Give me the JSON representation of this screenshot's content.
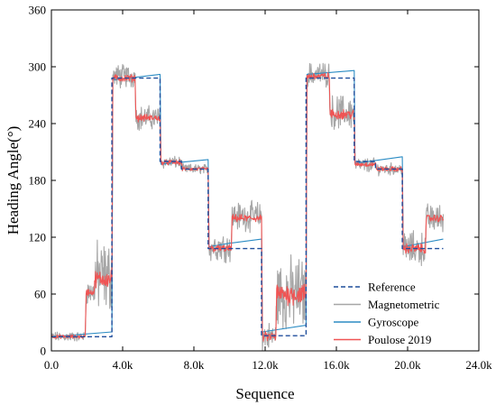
{
  "chart_data": {
    "type": "line",
    "title": "",
    "xlabel": "Sequence",
    "ylabel": "Heading Angle(°)",
    "xlim": [
      0,
      24000
    ],
    "ylim": [
      0,
      360
    ],
    "x_ticks": [
      0,
      4000,
      8000,
      12000,
      16000,
      20000,
      24000
    ],
    "x_tick_labels": [
      "0.0",
      "4.0k",
      "8.0k",
      "12.0k",
      "16.0k",
      "20.0k",
      "24.0k"
    ],
    "y_ticks": [
      0,
      60,
      120,
      180,
      240,
      300,
      360
    ],
    "y_tick_labels": [
      "0",
      "60",
      "120",
      "180",
      "240",
      "300",
      "360"
    ],
    "grid": false,
    "legend_position": "bottom-right",
    "series": [
      {
        "name": "Reference",
        "color": "#1f4e9c",
        "style": "dashed",
        "x": [
          0,
          3400,
          3400,
          6100,
          6100,
          7300,
          7300,
          8800,
          8800,
          10100,
          10100,
          11800,
          11800,
          14300,
          14300,
          17000,
          17000,
          18200,
          18200,
          19700,
          19700,
          21000,
          21000,
          22000
        ],
        "values": [
          15,
          15,
          288,
          288,
          200,
          200,
          192,
          192,
          108,
          108,
          108,
          108,
          16,
          16,
          288,
          288,
          200,
          200,
          192,
          192,
          108,
          108,
          108,
          108
        ]
      },
      {
        "name": "Magnetometric",
        "color": "#a6a6a6",
        "style": "solid",
        "x": [
          0,
          1900,
          1950,
          2400,
          2450,
          3400,
          3450,
          4700,
          4750,
          6100,
          6150,
          7300,
          7350,
          8800,
          8850,
          10100,
          10150,
          11800,
          11850,
          12600,
          12650,
          14300,
          14350,
          15600,
          15650,
          17000,
          17050,
          18200,
          18250,
          19700,
          19750,
          21000,
          21050,
          22000
        ],
        "values": [
          15,
          15,
          62,
          62,
          78,
          78,
          290,
          290,
          246,
          246,
          199,
          199,
          192,
          192,
          110,
          110,
          142,
          142,
          15,
          15,
          60,
          60,
          292,
          292,
          252,
          252,
          196,
          196,
          192,
          192,
          108,
          108,
          140,
          140
        ],
        "noise": [
          4,
          4,
          10,
          10,
          30,
          30,
          10,
          10,
          10,
          10,
          5,
          5,
          4,
          4,
          12,
          12,
          12,
          12,
          12,
          12,
          30,
          30,
          10,
          10,
          14,
          14,
          6,
          6,
          5,
          5,
          14,
          14,
          12,
          12
        ]
      },
      {
        "name": "Gyroscope",
        "color": "#2b8cc4",
        "style": "solid",
        "x": [
          0,
          3400,
          3450,
          6100,
          6150,
          8800,
          8850,
          10100,
          10150,
          11800,
          11850,
          14300,
          14350,
          17000,
          17050,
          19700,
          19750,
          22000
        ],
        "values": [
          15,
          20,
          286,
          292,
          197,
          202,
          110,
          114,
          114,
          118,
          20,
          27,
          292,
          296,
          198,
          205,
          110,
          118
        ]
      },
      {
        "name": "Poulose 2019",
        "color": "#f05454",
        "style": "solid",
        "x": [
          0,
          1900,
          1950,
          2400,
          2450,
          3400,
          3450,
          4700,
          4750,
          6100,
          6150,
          7300,
          7350,
          8800,
          8850,
          10100,
          10150,
          11800,
          11850,
          12600,
          12650,
          14300,
          14350,
          15600,
          15650,
          17000,
          17050,
          18200,
          18250,
          19700,
          19750,
          21000,
          21050,
          22000
        ],
        "values": [
          15,
          15,
          62,
          62,
          76,
          76,
          288,
          288,
          246,
          246,
          199,
          199,
          192,
          192,
          108,
          108,
          140,
          140,
          15,
          15,
          60,
          60,
          290,
          290,
          250,
          250,
          197,
          197,
          192,
          192,
          108,
          108,
          140,
          140
        ],
        "noise": [
          1.5,
          1.5,
          3,
          3,
          7,
          7,
          3,
          3,
          3,
          3,
          2,
          2,
          1.5,
          1.5,
          3,
          3,
          3,
          3,
          4,
          4,
          9,
          9,
          3,
          3,
          4,
          4,
          2,
          2,
          2,
          2,
          4,
          4,
          3,
          3
        ]
      }
    ]
  }
}
